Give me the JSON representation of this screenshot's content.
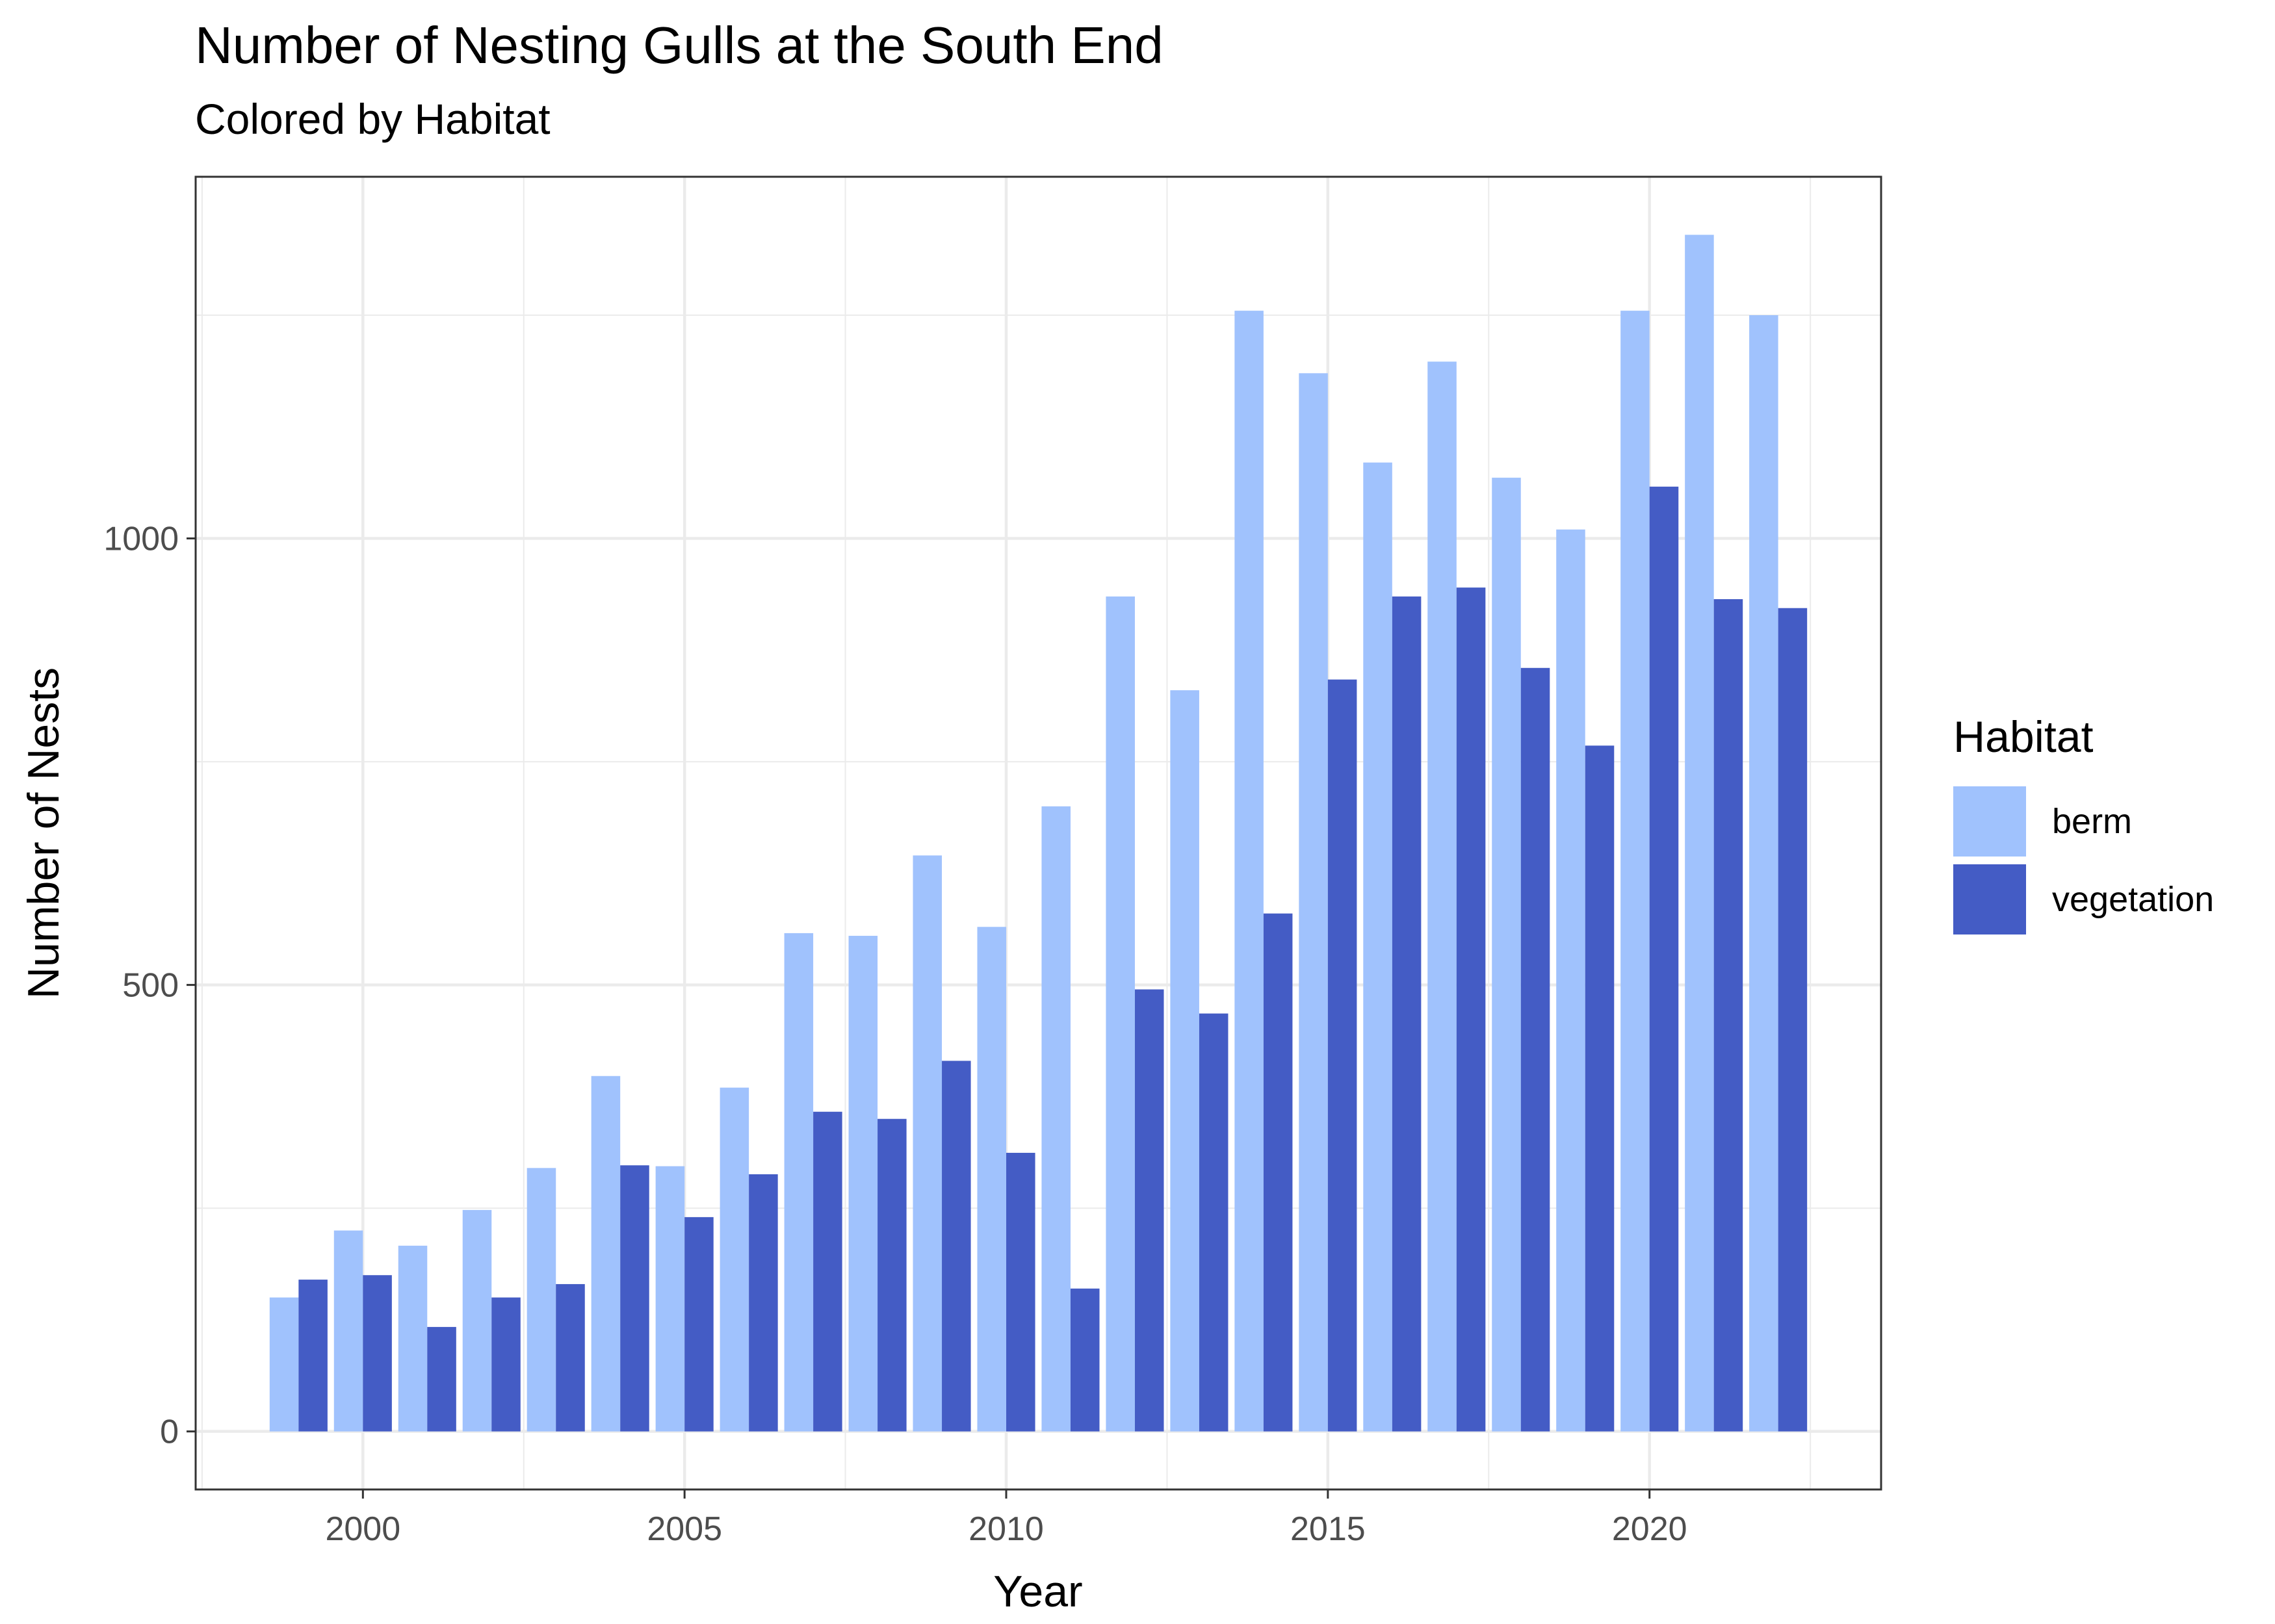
{
  "title": "Number of Nesting Gulls at the South End",
  "subtitle": "Colored by Habitat",
  "colors": {
    "berm": "#a0c2fd",
    "vegetation": "#445cc5",
    "grid": "#ebebeb",
    "panel_border": "#333333"
  },
  "legend": {
    "title": "Habitat",
    "position": "right"
  },
  "chart_data": {
    "type": "bar",
    "title": "Number of Nesting Gulls at the South End",
    "subtitle": "Colored by Habitat",
    "xlabel": "Year",
    "ylabel": "Number of Nests",
    "x_ticks": [
      2000,
      2005,
      2010,
      2015,
      2020
    ],
    "y_ticks": [
      0,
      500,
      1000
    ],
    "xlim": [
      1997.4,
      2023.6
    ],
    "ylim": [
      -65,
      1405
    ],
    "grid": true,
    "bar_layout": "dodge",
    "categories": [
      1999,
      2000,
      2001,
      2002,
      2003,
      2004,
      2005,
      2006,
      2007,
      2008,
      2009,
      2010,
      2011,
      2012,
      2013,
      2014,
      2015,
      2016,
      2017,
      2018,
      2019,
      2020,
      2021,
      2022
    ],
    "series": [
      {
        "name": "berm",
        "values": [
          150,
          225,
          208,
          248,
          295,
          398,
          297,
          385,
          558,
          555,
          645,
          565,
          700,
          935,
          830,
          1255,
          1185,
          1085,
          1198,
          1068,
          1010,
          1255,
          1340,
          1250
        ]
      },
      {
        "name": "vegetation",
        "values": [
          170,
          175,
          117,
          150,
          165,
          298,
          240,
          288,
          358,
          350,
          415,
          312,
          160,
          495,
          468,
          580,
          842,
          935,
          945,
          855,
          768,
          1058,
          932,
          922
        ]
      }
    ]
  }
}
